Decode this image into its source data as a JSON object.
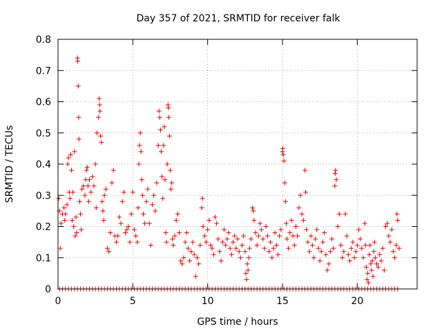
{
  "chart_data": {
    "type": "scatter",
    "title": "Day 357 of 2021, SRMTID for receiver falk",
    "xlabel": "GPS time / hours",
    "ylabel": "SRMTID / TECUs",
    "xlim": [
      0,
      24
    ],
    "ylim": [
      0,
      0.8
    ],
    "xticks": [
      0,
      5,
      10,
      15,
      20
    ],
    "xtick_labels": [
      "0",
      "5",
      "10",
      "15",
      "20"
    ],
    "yticks": [
      0,
      0.1,
      0.2,
      0.3,
      0.4,
      0.5,
      0.6,
      0.7,
      0.8
    ],
    "ytick_labels": [
      "0",
      "0.1",
      "0.2",
      "0.3",
      "0.4",
      "0.5",
      "0.6",
      "0.7",
      "0.8"
    ],
    "grid": true,
    "marker": "+",
    "color": "#e00000",
    "series": [
      {
        "name": "SRMTID",
        "points": [
          [
            0.05,
            0.29
          ],
          [
            0.1,
            0.25
          ],
          [
            0.15,
            0.13
          ],
          [
            0.2,
            0.21
          ],
          [
            0.3,
            0.24
          ],
          [
            0.4,
            0.26
          ],
          [
            0.45,
            0.22
          ],
          [
            0.5,
            0.24
          ],
          [
            0.6,
            0.27
          ],
          [
            0.65,
            0.4
          ],
          [
            0.7,
            0.42
          ],
          [
            0.75,
            0.31
          ],
          [
            0.8,
            0.29
          ],
          [
            0.85,
            0.43
          ],
          [
            0.9,
            0.38
          ],
          [
            0.95,
            0.22
          ],
          [
            1.0,
            0.31
          ],
          [
            1.05,
            0.2
          ],
          [
            1.1,
            0.44
          ],
          [
            1.15,
            0.17
          ],
          [
            1.2,
            0.23
          ],
          [
            1.25,
            0.18
          ],
          [
            1.3,
            0.74
          ],
          [
            1.32,
            0.73
          ],
          [
            1.35,
            0.65
          ],
          [
            1.38,
            0.55
          ],
          [
            1.4,
            0.48
          ],
          [
            1.45,
            0.28
          ],
          [
            1.5,
            0.24
          ],
          [
            1.55,
            0.19
          ],
          [
            1.6,
            0.32
          ],
          [
            1.7,
            0.33
          ],
          [
            1.8,
            0.3
          ],
          [
            1.85,
            0.35
          ],
          [
            1.9,
            0.38
          ],
          [
            1.95,
            0.39
          ],
          [
            2.0,
            0.33
          ],
          [
            2.05,
            0.28
          ],
          [
            2.1,
            0.35
          ],
          [
            2.2,
            0.31
          ],
          [
            2.3,
            0.36
          ],
          [
            2.4,
            0.33
          ],
          [
            2.5,
            0.4
          ],
          [
            2.55,
            0.26
          ],
          [
            2.6,
            0.5
          ],
          [
            2.7,
            0.55
          ],
          [
            2.75,
            0.61
          ],
          [
            2.78,
            0.59
          ],
          [
            2.8,
            0.57
          ],
          [
            2.85,
            0.49
          ],
          [
            2.9,
            0.47
          ],
          [
            2.95,
            0.28
          ],
          [
            3.0,
            0.25
          ],
          [
            3.05,
            0.22
          ],
          [
            3.1,
            0.3
          ],
          [
            3.2,
            0.32
          ],
          [
            3.3,
            0.13
          ],
          [
            3.4,
            0.12
          ],
          [
            3.5,
            0.18
          ],
          [
            3.6,
            0.34
          ],
          [
            3.7,
            0.38
          ],
          [
            3.8,
            0.17
          ],
          [
            3.9,
            0.15
          ],
          [
            4.0,
            0.17
          ],
          [
            4.1,
            0.23
          ],
          [
            4.2,
            0.21
          ],
          [
            4.3,
            0.28
          ],
          [
            4.4,
            0.31
          ],
          [
            4.5,
            0.18
          ],
          [
            4.6,
            0.19
          ],
          [
            4.7,
            0.2
          ],
          [
            4.8,
            0.15
          ],
          [
            4.9,
            0.24
          ],
          [
            5.0,
            0.31
          ],
          [
            5.1,
            0.19
          ],
          [
            5.2,
            0.17
          ],
          [
            5.3,
            0.15
          ],
          [
            5.35,
            0.26
          ],
          [
            5.4,
            0.4
          ],
          [
            5.45,
            0.46
          ],
          [
            5.5,
            0.5
          ],
          [
            5.55,
            0.44
          ],
          [
            5.6,
            0.35
          ],
          [
            5.65,
            0.3
          ],
          [
            5.7,
            0.24
          ],
          [
            5.8,
            0.21
          ],
          [
            5.9,
            0.28
          ],
          [
            6.0,
            0.32
          ],
          [
            6.1,
            0.21
          ],
          [
            6.2,
            0.14
          ],
          [
            6.3,
            0.27
          ],
          [
            6.4,
            0.3
          ],
          [
            6.5,
            0.25
          ],
          [
            6.6,
            0.34
          ],
          [
            6.7,
            0.46
          ],
          [
            6.75,
            0.57
          ],
          [
            6.8,
            0.55
          ],
          [
            6.85,
            0.51
          ],
          [
            6.9,
            0.44
          ],
          [
            6.95,
            0.36
          ],
          [
            7.0,
            0.29
          ],
          [
            7.05,
            0.46
          ],
          [
            7.1,
            0.52
          ],
          [
            7.15,
            0.35
          ],
          [
            7.2,
            0.18
          ],
          [
            7.25,
            0.15
          ],
          [
            7.3,
            0.4
          ],
          [
            7.35,
            0.59
          ],
          [
            7.38,
            0.58
          ],
          [
            7.4,
            0.55
          ],
          [
            7.45,
            0.49
          ],
          [
            7.5,
            0.38
          ],
          [
            7.55,
            0.32
          ],
          [
            7.6,
            0.34
          ],
          [
            7.65,
            0.16
          ],
          [
            7.7,
            0.14
          ],
          [
            7.8,
            0.17
          ],
          [
            7.9,
            0.22
          ],
          [
            8.0,
            0.24
          ],
          [
            8.1,
            0.18
          ],
          [
            8.2,
            0.09
          ],
          [
            8.3,
            0.08
          ],
          [
            8.4,
            0.1
          ],
          [
            8.5,
            0.15
          ],
          [
            8.6,
            0.18
          ],
          [
            8.7,
            0.13
          ],
          [
            8.8,
            0.09
          ],
          [
            8.9,
            0.12
          ],
          [
            9.0,
            0.15
          ],
          [
            9.1,
            0.11
          ],
          [
            9.2,
            0.04
          ],
          [
            9.3,
            0.1
          ],
          [
            9.4,
            0.08
          ],
          [
            9.5,
            0.14
          ],
          [
            9.6,
            0.26
          ],
          [
            9.65,
            0.29
          ],
          [
            9.7,
            0.2
          ],
          [
            9.8,
            0.17
          ],
          [
            9.9,
            0.15
          ],
          [
            10.0,
            0.19
          ],
          [
            10.1,
            0.22
          ],
          [
            10.2,
            0.14
          ],
          [
            10.3,
            0.13
          ],
          [
            10.4,
            0.11
          ],
          [
            10.5,
            0.23
          ],
          [
            10.6,
            0.21
          ],
          [
            10.7,
            0.16
          ],
          [
            10.8,
            0.12
          ],
          [
            10.9,
            0.09
          ],
          [
            11.0,
            0.15
          ],
          [
            11.1,
            0.19
          ],
          [
            11.2,
            0.14
          ],
          [
            11.3,
            0.16
          ],
          [
            11.4,
            0.18
          ],
          [
            11.5,
            0.13
          ],
          [
            11.6,
            0.11
          ],
          [
            11.7,
            0.15
          ],
          [
            11.8,
            0.17
          ],
          [
            11.9,
            0.13
          ],
          [
            12.0,
            0.16
          ],
          [
            12.1,
            0.12
          ],
          [
            12.2,
            0.1
          ],
          [
            12.3,
            0.14
          ],
          [
            12.4,
            0.17
          ],
          [
            12.5,
            0.12
          ],
          [
            12.55,
            0.05
          ],
          [
            12.6,
            0.03
          ],
          [
            12.65,
            0.08
          ],
          [
            12.7,
            0.06
          ],
          [
            12.75,
            0.1
          ],
          [
            12.8,
            0.13
          ],
          [
            12.9,
            0.16
          ],
          [
            13.0,
            0.26
          ],
          [
            13.05,
            0.25
          ],
          [
            13.1,
            0.22
          ],
          [
            13.2,
            0.18
          ],
          [
            13.3,
            0.14
          ],
          [
            13.4,
            0.17
          ],
          [
            13.5,
            0.21
          ],
          [
            13.6,
            0.19
          ],
          [
            13.7,
            0.16
          ],
          [
            13.8,
            0.13
          ],
          [
            13.9,
            0.2
          ],
          [
            14.0,
            0.17
          ],
          [
            14.1,
            0.12
          ],
          [
            14.2,
            0.15
          ],
          [
            14.3,
            0.1
          ],
          [
            14.4,
            0.13
          ],
          [
            14.5,
            0.18
          ],
          [
            14.6,
            0.14
          ],
          [
            14.7,
            0.11
          ],
          [
            14.8,
            0.17
          ],
          [
            14.9,
            0.19
          ],
          [
            15.0,
            0.44
          ],
          [
            15.02,
            0.45
          ],
          [
            15.05,
            0.43
          ],
          [
            15.1,
            0.41
          ],
          [
            15.15,
            0.34
          ],
          [
            15.2,
            0.28
          ],
          [
            15.25,
            0.21
          ],
          [
            15.3,
            0.16
          ],
          [
            15.4,
            0.13
          ],
          [
            15.5,
            0.18
          ],
          [
            15.6,
            0.22
          ],
          [
            15.7,
            0.17
          ],
          [
            15.8,
            0.14
          ],
          [
            15.9,
            0.2
          ],
          [
            16.0,
            0.17
          ],
          [
            16.1,
            0.26
          ],
          [
            16.2,
            0.3
          ],
          [
            16.3,
            0.24
          ],
          [
            16.4,
            0.22
          ],
          [
            16.5,
            0.38
          ],
          [
            16.55,
            0.31
          ],
          [
            16.6,
            0.19
          ],
          [
            16.7,
            0.15
          ],
          [
            16.8,
            0.12
          ],
          [
            16.9,
            0.17
          ],
          [
            17.0,
            0.14
          ],
          [
            17.1,
            0.1
          ],
          [
            17.2,
            0.16
          ],
          [
            17.3,
            0.19
          ],
          [
            17.4,
            0.13
          ],
          [
            17.5,
            0.09
          ],
          [
            17.6,
            0.12
          ],
          [
            17.7,
            0.15
          ],
          [
            17.8,
            0.18
          ],
          [
            17.9,
            0.11
          ],
          [
            18.0,
            0.06
          ],
          [
            18.1,
            0.08
          ],
          [
            18.2,
            0.12
          ],
          [
            18.3,
            0.16
          ],
          [
            18.4,
            0.13
          ],
          [
            18.5,
            0.33
          ],
          [
            18.52,
            0.37
          ],
          [
            18.55,
            0.38
          ],
          [
            18.6,
            0.35
          ],
          [
            18.7,
            0.2
          ],
          [
            18.8,
            0.24
          ],
          [
            18.9,
            0.14
          ],
          [
            19.0,
            0.1
          ],
          [
            19.1,
            0.12
          ],
          [
            19.2,
            0.24
          ],
          [
            19.3,
            0.17
          ],
          [
            19.4,
            0.11
          ],
          [
            19.5,
            0.09
          ],
          [
            19.6,
            0.13
          ],
          [
            19.7,
            0.15
          ],
          [
            19.8,
            0.1
          ],
          [
            19.9,
            0.12
          ],
          [
            20.0,
            0.14
          ],
          [
            20.1,
            0.19
          ],
          [
            20.2,
            0.16
          ],
          [
            20.3,
            0.13
          ],
          [
            20.4,
            0.1
          ],
          [
            20.5,
            0.21
          ],
          [
            20.55,
            0.14
          ],
          [
            20.6,
            0.07
          ],
          [
            20.65,
            0.03
          ],
          [
            20.7,
            0.05
          ],
          [
            20.75,
            0.02
          ],
          [
            20.8,
            0.11
          ],
          [
            20.85,
            0.14
          ],
          [
            20.9,
            0.08
          ],
          [
            20.95,
            0.06
          ],
          [
            21.0,
            0.09
          ],
          [
            21.05,
            0.04
          ],
          [
            21.1,
            0.12
          ],
          [
            21.15,
            0.15
          ],
          [
            21.2,
            0.1
          ],
          [
            21.3,
            0.08
          ],
          [
            21.4,
            0.07
          ],
          [
            21.5,
            0.11
          ],
          [
            21.6,
            0.09
          ],
          [
            21.7,
            0.13
          ],
          [
            21.8,
            0.06
          ],
          [
            21.9,
            0.2
          ],
          [
            22.0,
            0.21
          ],
          [
            22.1,
            0.17
          ],
          [
            22.2,
            0.15
          ],
          [
            22.3,
            0.19
          ],
          [
            22.4,
            0.12
          ],
          [
            22.5,
            0.1
          ],
          [
            22.6,
            0.14
          ],
          [
            22.65,
            0.24
          ],
          [
            22.7,
            0.22
          ],
          [
            22.8,
            0.13
          ]
        ],
        "zero_points_x": [
          0.1,
          0.3,
          0.5,
          0.7,
          0.9,
          1.1,
          1.3,
          1.5,
          1.7,
          1.9,
          2.1,
          2.3,
          2.5,
          2.7,
          2.9,
          3.1,
          3.3,
          3.5,
          3.7,
          3.9,
          4.1,
          4.3,
          4.5,
          4.7,
          4.9,
          5.1,
          5.3,
          5.5,
          5.7,
          5.9,
          6.1,
          6.3,
          6.5,
          6.7,
          6.9,
          7.1,
          7.3,
          7.5,
          7.7,
          7.9,
          8.1,
          8.3,
          8.5,
          8.7,
          8.9,
          9.1,
          9.3,
          9.5,
          9.7,
          9.9,
          10.1,
          10.3,
          10.5,
          10.7,
          10.9,
          11.1,
          11.3,
          11.5,
          11.7,
          11.9,
          12.1,
          12.3,
          12.5,
          12.7,
          12.9,
          13.1,
          13.3,
          13.5,
          13.7,
          13.9,
          14.1,
          14.3,
          14.5,
          14.7,
          14.9,
          15.1,
          15.3,
          15.5,
          15.7,
          15.9,
          16.1,
          16.3,
          16.5,
          16.7,
          16.9,
          17.1,
          17.3,
          17.5,
          17.7,
          17.9,
          18.1,
          18.3,
          18.5,
          18.7,
          18.9,
          19.1,
          19.3,
          19.5,
          19.7,
          19.9,
          20.1,
          20.3,
          20.5,
          20.7,
          20.9,
          21.1,
          21.3,
          21.5,
          21.7,
          21.9,
          22.1,
          22.3,
          22.5,
          22.7
        ]
      }
    ]
  }
}
